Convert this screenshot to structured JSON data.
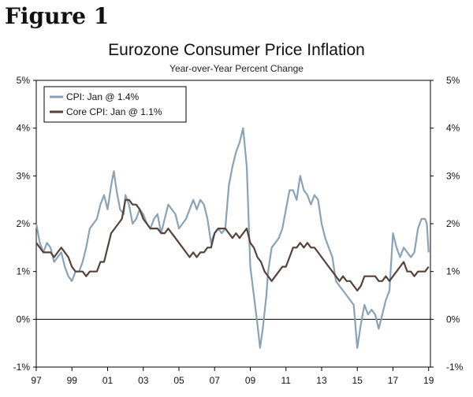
{
  "figure_label": "Figure 1",
  "chart_data": {
    "type": "line",
    "title": "Eurozone Consumer Price Inflation",
    "subtitle": "Year-over-Year Percent Change",
    "xlabel": "",
    "ylabel": "",
    "x_range": [
      1997.0,
      2019.1
    ],
    "ylim": [
      -1,
      5
    ],
    "x_ticks": [
      1997,
      1999,
      2001,
      2003,
      2005,
      2007,
      2009,
      2011,
      2013,
      2015,
      2017,
      2019
    ],
    "x_tick_labels": [
      "97",
      "99",
      "01",
      "03",
      "05",
      "07",
      "09",
      "11",
      "13",
      "15",
      "17",
      "19"
    ],
    "y_ticks": [
      -1,
      0,
      1,
      2,
      3,
      4,
      5
    ],
    "y_tick_labels": [
      "-1%",
      "0%",
      "1%",
      "2%",
      "3%",
      "4%",
      "5%"
    ],
    "right_axis_mirrors_left": true,
    "grid": false,
    "zero_line": true,
    "legend_position": "top-left",
    "series": [
      {
        "name": "CPI: Jan @ 1.4%",
        "color": "#8aa2b6",
        "points": [
          [
            1997.0,
            2.0
          ],
          [
            1997.2,
            1.6
          ],
          [
            1997.4,
            1.4
          ],
          [
            1997.6,
            1.6
          ],
          [
            1997.8,
            1.5
          ],
          [
            1998.0,
            1.2
          ],
          [
            1998.2,
            1.3
          ],
          [
            1998.4,
            1.4
          ],
          [
            1998.6,
            1.1
          ],
          [
            1998.8,
            0.9
          ],
          [
            1999.0,
            0.8
          ],
          [
            1999.2,
            1.0
          ],
          [
            1999.4,
            1.0
          ],
          [
            1999.6,
            1.2
          ],
          [
            1999.8,
            1.5
          ],
          [
            2000.0,
            1.9
          ],
          [
            2000.2,
            2.0
          ],
          [
            2000.4,
            2.1
          ],
          [
            2000.6,
            2.4
          ],
          [
            2000.8,
            2.6
          ],
          [
            2001.0,
            2.3
          ],
          [
            2001.2,
            2.8
          ],
          [
            2001.35,
            3.1
          ],
          [
            2001.5,
            2.7
          ],
          [
            2001.7,
            2.3
          ],
          [
            2001.9,
            2.2
          ],
          [
            2002.0,
            2.6
          ],
          [
            2002.2,
            2.4
          ],
          [
            2002.4,
            2.0
          ],
          [
            2002.6,
            2.1
          ],
          [
            2002.8,
            2.3
          ],
          [
            2003.0,
            2.2
          ],
          [
            2003.2,
            2.0
          ],
          [
            2003.4,
            1.9
          ],
          [
            2003.6,
            2.1
          ],
          [
            2003.8,
            2.2
          ],
          [
            2004.0,
            1.8
          ],
          [
            2004.2,
            2.1
          ],
          [
            2004.4,
            2.4
          ],
          [
            2004.6,
            2.3
          ],
          [
            2004.8,
            2.2
          ],
          [
            2005.0,
            1.9
          ],
          [
            2005.2,
            2.0
          ],
          [
            2005.4,
            2.1
          ],
          [
            2005.6,
            2.3
          ],
          [
            2005.8,
            2.5
          ],
          [
            2006.0,
            2.3
          ],
          [
            2006.2,
            2.5
          ],
          [
            2006.4,
            2.4
          ],
          [
            2006.6,
            2.1
          ],
          [
            2006.8,
            1.6
          ],
          [
            2007.0,
            1.8
          ],
          [
            2007.2,
            1.9
          ],
          [
            2007.4,
            1.8
          ],
          [
            2007.6,
            1.9
          ],
          [
            2007.8,
            2.8
          ],
          [
            2008.0,
            3.2
          ],
          [
            2008.2,
            3.5
          ],
          [
            2008.4,
            3.7
          ],
          [
            2008.6,
            4.0
          ],
          [
            2008.8,
            3.2
          ],
          [
            2009.0,
            1.1
          ],
          [
            2009.2,
            0.5
          ],
          [
            2009.4,
            -0.1
          ],
          [
            2009.55,
            -0.6
          ],
          [
            2009.7,
            -0.2
          ],
          [
            2009.9,
            0.5
          ],
          [
            2010.0,
            1.0
          ],
          [
            2010.2,
            1.5
          ],
          [
            2010.4,
            1.6
          ],
          [
            2010.6,
            1.7
          ],
          [
            2010.8,
            1.9
          ],
          [
            2011.0,
            2.3
          ],
          [
            2011.2,
            2.7
          ],
          [
            2011.4,
            2.7
          ],
          [
            2011.6,
            2.5
          ],
          [
            2011.8,
            3.0
          ],
          [
            2012.0,
            2.7
          ],
          [
            2012.2,
            2.6
          ],
          [
            2012.4,
            2.4
          ],
          [
            2012.6,
            2.6
          ],
          [
            2012.8,
            2.5
          ],
          [
            2013.0,
            2.0
          ],
          [
            2013.2,
            1.7
          ],
          [
            2013.4,
            1.5
          ],
          [
            2013.6,
            1.3
          ],
          [
            2013.8,
            0.8
          ],
          [
            2014.0,
            0.7
          ],
          [
            2014.2,
            0.6
          ],
          [
            2014.4,
            0.5
          ],
          [
            2014.6,
            0.4
          ],
          [
            2014.8,
            0.3
          ],
          [
            2015.0,
            -0.6
          ],
          [
            2015.2,
            -0.1
          ],
          [
            2015.4,
            0.3
          ],
          [
            2015.6,
            0.1
          ],
          [
            2015.8,
            0.2
          ],
          [
            2016.0,
            0.1
          ],
          [
            2016.2,
            -0.2
          ],
          [
            2016.4,
            0.1
          ],
          [
            2016.6,
            0.4
          ],
          [
            2016.8,
            0.6
          ],
          [
            2017.0,
            1.8
          ],
          [
            2017.2,
            1.5
          ],
          [
            2017.4,
            1.3
          ],
          [
            2017.6,
            1.5
          ],
          [
            2017.8,
            1.4
          ],
          [
            2018.0,
            1.3
          ],
          [
            2018.2,
            1.4
          ],
          [
            2018.4,
            1.9
          ],
          [
            2018.6,
            2.1
          ],
          [
            2018.8,
            2.1
          ],
          [
            2018.9,
            2.0
          ],
          [
            2019.0,
            1.4
          ]
        ]
      },
      {
        "name": "Core CPI: Jan @ 1.1%",
        "color": "#55433a",
        "points": [
          [
            1997.0,
            1.6
          ],
          [
            1997.2,
            1.5
          ],
          [
            1997.4,
            1.4
          ],
          [
            1997.6,
            1.4
          ],
          [
            1997.8,
            1.4
          ],
          [
            1998.0,
            1.3
          ],
          [
            1998.2,
            1.4
          ],
          [
            1998.4,
            1.5
          ],
          [
            1998.6,
            1.4
          ],
          [
            1998.8,
            1.3
          ],
          [
            1999.0,
            1.1
          ],
          [
            1999.2,
            1.0
          ],
          [
            1999.4,
            1.0
          ],
          [
            1999.6,
            1.0
          ],
          [
            1999.8,
            0.9
          ],
          [
            2000.0,
            1.0
          ],
          [
            2000.2,
            1.0
          ],
          [
            2000.4,
            1.0
          ],
          [
            2000.6,
            1.2
          ],
          [
            2000.8,
            1.2
          ],
          [
            2001.0,
            1.5
          ],
          [
            2001.2,
            1.8
          ],
          [
            2001.4,
            1.9
          ],
          [
            2001.6,
            2.0
          ],
          [
            2001.8,
            2.1
          ],
          [
            2002.0,
            2.5
          ],
          [
            2002.2,
            2.5
          ],
          [
            2002.4,
            2.4
          ],
          [
            2002.6,
            2.4
          ],
          [
            2002.8,
            2.3
          ],
          [
            2003.0,
            2.1
          ],
          [
            2003.2,
            2.0
          ],
          [
            2003.4,
            1.9
          ],
          [
            2003.6,
            1.9
          ],
          [
            2003.8,
            1.9
          ],
          [
            2004.0,
            1.8
          ],
          [
            2004.2,
            1.8
          ],
          [
            2004.4,
            1.9
          ],
          [
            2004.6,
            1.8
          ],
          [
            2004.8,
            1.7
          ],
          [
            2005.0,
            1.6
          ],
          [
            2005.2,
            1.5
          ],
          [
            2005.4,
            1.4
          ],
          [
            2005.6,
            1.3
          ],
          [
            2005.8,
            1.4
          ],
          [
            2006.0,
            1.3
          ],
          [
            2006.2,
            1.4
          ],
          [
            2006.4,
            1.4
          ],
          [
            2006.6,
            1.5
          ],
          [
            2006.8,
            1.5
          ],
          [
            2007.0,
            1.8
          ],
          [
            2007.2,
            1.9
          ],
          [
            2007.4,
            1.9
          ],
          [
            2007.6,
            1.9
          ],
          [
            2007.8,
            1.8
          ],
          [
            2008.0,
            1.7
          ],
          [
            2008.2,
            1.8
          ],
          [
            2008.4,
            1.7
          ],
          [
            2008.6,
            1.8
          ],
          [
            2008.8,
            1.9
          ],
          [
            2009.0,
            1.6
          ],
          [
            2009.2,
            1.5
          ],
          [
            2009.4,
            1.3
          ],
          [
            2009.6,
            1.2
          ],
          [
            2009.8,
            1.0
          ],
          [
            2010.0,
            0.9
          ],
          [
            2010.2,
            0.8
          ],
          [
            2010.4,
            0.9
          ],
          [
            2010.6,
            1.0
          ],
          [
            2010.8,
            1.1
          ],
          [
            2011.0,
            1.1
          ],
          [
            2011.2,
            1.3
          ],
          [
            2011.4,
            1.5
          ],
          [
            2011.6,
            1.5
          ],
          [
            2011.8,
            1.6
          ],
          [
            2012.0,
            1.5
          ],
          [
            2012.2,
            1.6
          ],
          [
            2012.4,
            1.5
          ],
          [
            2012.6,
            1.5
          ],
          [
            2012.8,
            1.4
          ],
          [
            2013.0,
            1.3
          ],
          [
            2013.2,
            1.2
          ],
          [
            2013.4,
            1.1
          ],
          [
            2013.6,
            1.0
          ],
          [
            2013.8,
            0.9
          ],
          [
            2014.0,
            0.8
          ],
          [
            2014.2,
            0.9
          ],
          [
            2014.4,
            0.8
          ],
          [
            2014.6,
            0.8
          ],
          [
            2014.8,
            0.7
          ],
          [
            2015.0,
            0.6
          ],
          [
            2015.2,
            0.7
          ],
          [
            2015.4,
            0.9
          ],
          [
            2015.6,
            0.9
          ],
          [
            2015.8,
            0.9
          ],
          [
            2016.0,
            0.9
          ],
          [
            2016.2,
            0.8
          ],
          [
            2016.4,
            0.8
          ],
          [
            2016.6,
            0.9
          ],
          [
            2016.8,
            0.8
          ],
          [
            2017.0,
            0.9
          ],
          [
            2017.2,
            1.0
          ],
          [
            2017.4,
            1.1
          ],
          [
            2017.6,
            1.2
          ],
          [
            2017.8,
            1.0
          ],
          [
            2018.0,
            1.0
          ],
          [
            2018.2,
            0.9
          ],
          [
            2018.4,
            1.0
          ],
          [
            2018.6,
            1.0
          ],
          [
            2018.8,
            1.0
          ],
          [
            2019.0,
            1.1
          ]
        ]
      }
    ]
  }
}
